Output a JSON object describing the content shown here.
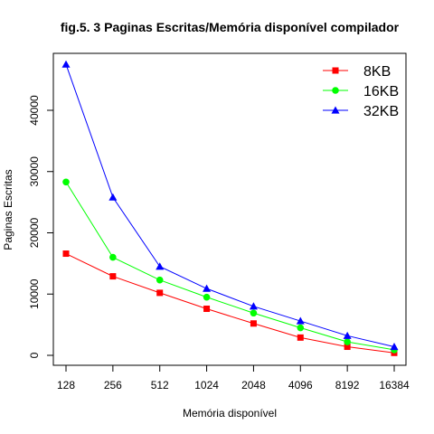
{
  "chart_data": {
    "type": "line",
    "title": "fig.5. 3 Paginas Escritas/Memória disponível  compilador",
    "xlabel": "Memória disponível",
    "ylabel": "Paginas Escritas",
    "categories": [
      "128",
      "256",
      "512",
      "1024",
      "2048",
      "4096",
      "8192",
      "16384"
    ],
    "y_ticks": [
      0,
      10000,
      20000,
      30000,
      40000
    ],
    "ylim": [
      0,
      47500
    ],
    "legend_position": "top-right",
    "grid": false,
    "series": [
      {
        "name": "8KB",
        "color": "#ff0000",
        "marker": "square",
        "values": [
          16600,
          12900,
          10200,
          7600,
          5200,
          2900,
          1400,
          400
        ]
      },
      {
        "name": "16KB",
        "color": "#00ff00",
        "marker": "circle",
        "values": [
          28300,
          16000,
          12300,
          9500,
          6900,
          4500,
          2200,
          900
        ]
      },
      {
        "name": "32KB",
        "color": "#0000ff",
        "marker": "triangle",
        "values": [
          47500,
          25800,
          14500,
          10900,
          8000,
          5600,
          3200,
          1400
        ]
      }
    ]
  }
}
